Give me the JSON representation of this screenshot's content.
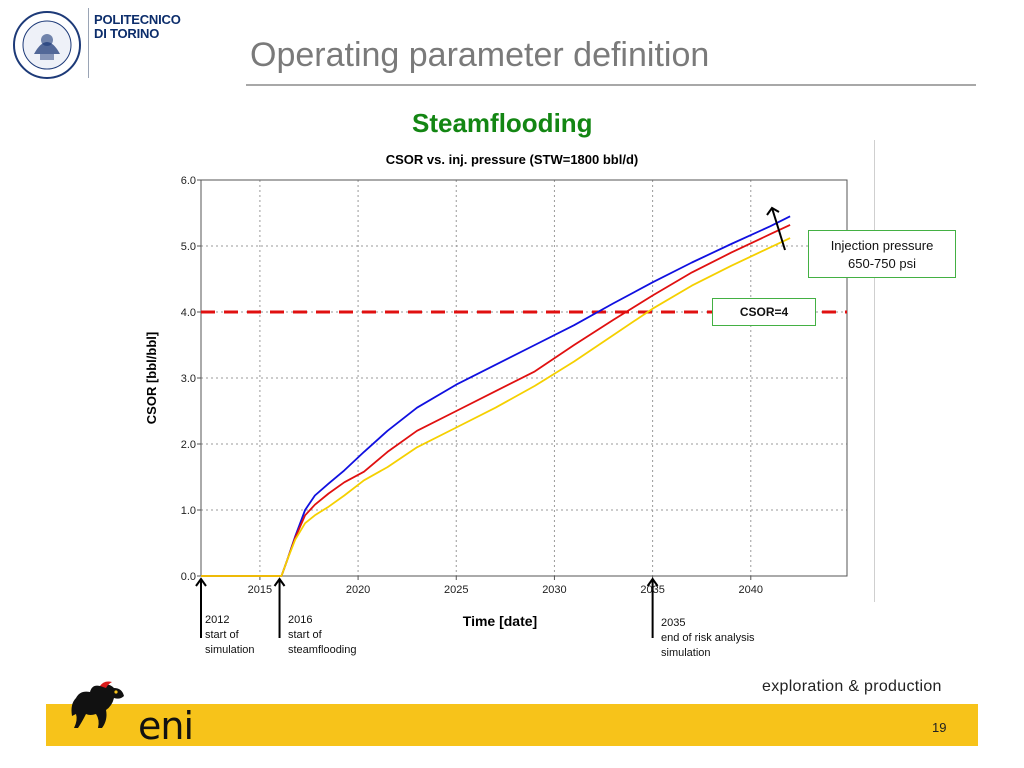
{
  "header": {
    "logo_line1": "POLITECNICO",
    "logo_line2": "DI TORINO",
    "seal_text": "POLITECNICO DI TORINO",
    "seal_years": "1859 · 1906",
    "title": "Operating parameter definition",
    "subtitle": "Steamflooding"
  },
  "colors": {
    "subtitle": "#138613",
    "blue": "#1010e0",
    "red": "#e01010",
    "yellow": "#f5d000",
    "threshold": "#e01010",
    "footer_band": "#f7c31a",
    "callout_border": "#43b043"
  },
  "chart_data": {
    "type": "line",
    "title": "CSOR vs. inj. pressure (STW=1800 bbl/d)",
    "xlabel": "Time [date]",
    "ylabel": "CSOR [bbl/bbl]",
    "xlim": [
      2012,
      2044.9
    ],
    "ylim": [
      0,
      6
    ],
    "xticks": [
      "2015",
      "2020",
      "2025",
      "2030",
      "2035",
      "2040"
    ],
    "yticks": [
      "0.0",
      "1.0",
      "2.0",
      "3.0",
      "4.0",
      "5.0",
      "6.0"
    ],
    "grid": true,
    "threshold": {
      "y": 4.0
    },
    "series": [
      {
        "color": "#1010e0",
        "x": [
          2012,
          2016.1,
          2016.4,
          2016.8,
          2017.3,
          2017.8,
          2018.5,
          2019.3,
          2020.3,
          2021.5,
          2023,
          2025,
          2027,
          2029,
          2031,
          2033,
          2035,
          2037,
          2039,
          2041,
          2042
        ],
        "y": [
          0,
          0,
          0.25,
          0.6,
          1.0,
          1.22,
          1.4,
          1.6,
          1.88,
          2.2,
          2.55,
          2.9,
          3.2,
          3.5,
          3.8,
          4.13,
          4.45,
          4.75,
          5.03,
          5.3,
          5.45
        ]
      },
      {
        "color": "#e01010",
        "x": [
          2012,
          2016.1,
          2016.4,
          2016.8,
          2017.3,
          2017.8,
          2018.5,
          2019.3,
          2020.3,
          2021.5,
          2023,
          2025,
          2027,
          2029,
          2031,
          2033,
          2035,
          2037,
          2039,
          2041,
          2042
        ],
        "y": [
          0,
          0,
          0.25,
          0.58,
          0.92,
          1.08,
          1.25,
          1.42,
          1.58,
          1.88,
          2.2,
          2.5,
          2.8,
          3.1,
          3.5,
          3.88,
          4.25,
          4.6,
          4.9,
          5.18,
          5.32
        ]
      },
      {
        "color": "#f5d000",
        "x": [
          2012,
          2016.1,
          2016.4,
          2016.8,
          2017.3,
          2017.8,
          2018.5,
          2019.3,
          2020.3,
          2021.5,
          2023,
          2025,
          2027,
          2029,
          2031,
          2033,
          2035,
          2037,
          2039,
          2041,
          2042
        ],
        "y": [
          0,
          0,
          0.25,
          0.55,
          0.8,
          0.92,
          1.05,
          1.22,
          1.45,
          1.65,
          1.95,
          2.25,
          2.55,
          2.88,
          3.25,
          3.65,
          4.05,
          4.4,
          4.7,
          4.98,
          5.12
        ]
      }
    ]
  },
  "callouts": {
    "injection_line1": "Injection pressure",
    "injection_line2": "650-750 psi",
    "csor_label": "CSOR=4"
  },
  "markers": [
    {
      "year": 2012,
      "line1": "2012",
      "line2": "start of",
      "line3": "simulation"
    },
    {
      "year": 2016,
      "line1": "2016",
      "line2": "start of",
      "line3": "steamflooding"
    },
    {
      "year": 2035,
      "line1": "2035",
      "line2": "end of risk analysis",
      "line3": "simulation"
    }
  ],
  "footer": {
    "division": "exploration & production",
    "brand": "eni",
    "page_number": "19"
  }
}
